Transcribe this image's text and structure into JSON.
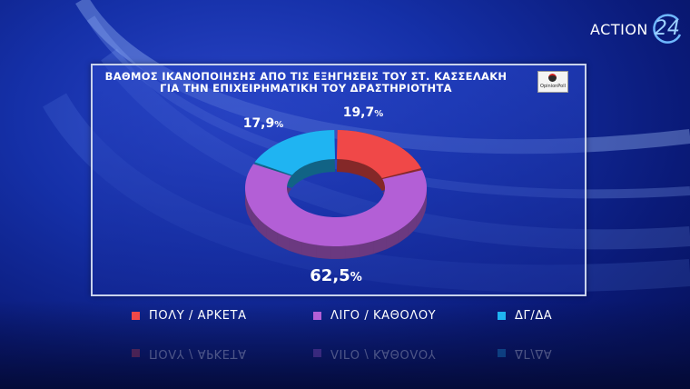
{
  "brand": {
    "name": "ACTION",
    "number": "24"
  },
  "chart_data": {
    "type": "pie",
    "title": "ΒΑΘΜΟΣ ΙΚΑΝΟΠΟΙΗΣΗΣ ΑΠΟ ΤΙΣ ΕΞΗΓΗΣΕΙΣ ΤΟΥ ΣΤ. ΚΑΣΣΕΛΑΚΗ",
    "subtitle": "ΓΙΑ ΤΗΝ ΕΠΙΧΕΙΡΗΜΑΤΙΚΗ ΤΟΥ ΔΡΑΣΤΗΡΙΟΤΗΤΑ",
    "source": "OpinionPoll",
    "slices": [
      {
        "label": "ΠΟΛΥ / ΑΡΚΕΤΑ",
        "value": 19.7,
        "display": "19,7",
        "color": "#f04848"
      },
      {
        "label": "ΛΙΓΟ / ΚΑΘΟΛΟΥ",
        "value": 62.5,
        "display": "62,5",
        "color": "#b35fd6"
      },
      {
        "label": "ΔΓ/ΔΑ",
        "value": 17.9,
        "display": "17,9",
        "color": "#1fb4f2"
      }
    ],
    "unit": "%"
  }
}
